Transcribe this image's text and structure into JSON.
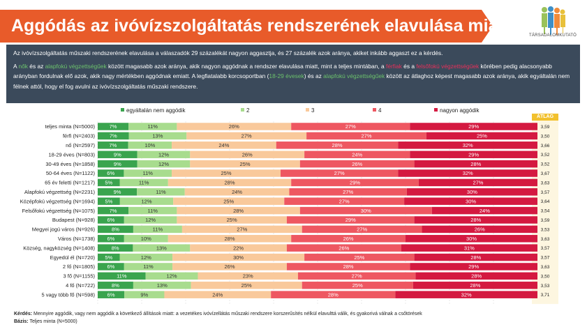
{
  "title": "Aggódás az ivóvízszolgáltatás rendszerének elavulása miatt",
  "logo_text": "TÁRSADALOMKUTATÓ",
  "info": {
    "p1": "Az ivóvízszolgáltatás műszaki rendszerének elavulása a válaszadók 29 százalékát nagyon aggasztja, és 27 százalék azok aránya, akiket inkább aggaszt ez a kérdés.",
    "p2": [
      {
        "t": "A ",
        "c": ""
      },
      {
        "t": "nők",
        "c": "green"
      },
      {
        "t": " és az ",
        "c": ""
      },
      {
        "t": "alapfokú végzettségűek",
        "c": "green"
      },
      {
        "t": " között magasabb azok aránya, akik nagyon aggódnak a rendszer elavulása miatt, mint a teljes mintában, a ",
        "c": ""
      },
      {
        "t": "férfiak",
        "c": "red"
      },
      {
        "t": " és a ",
        "c": ""
      },
      {
        "t": "felsőfokú végzettségűek",
        "c": "red"
      },
      {
        "t": " körében pedig alacsonyabb arányban fordulnak elő azok, akik nagy mértékben aggódnak emiatt. A legfiatalabb korcsoportban (",
        "c": ""
      },
      {
        "t": "18-29 évesek",
        "c": "green"
      },
      {
        "t": ") és az ",
        "c": ""
      },
      {
        "t": "alapfokú végzettségűek",
        "c": "green"
      },
      {
        "t": " között az átlaghoz képest magasabb azok aránya, akik egyáltalán nem félnek attól, hogy el fog avulni az ivóvízszolgáltatás műszaki rendszere.",
        "c": ""
      }
    ]
  },
  "atlag_label": "ÁTLAG",
  "colors": {
    "banner": "#e85b2a",
    "infobox": "#3b4a5b",
    "highlight_green": "#6cc26c",
    "highlight_red": "#e8305a",
    "seg1": "#3aa44e",
    "seg2": "#a8dc8e",
    "seg3": "#f9c99b",
    "seg4": "#ee5761",
    "seg5": "#d41940",
    "atlag": "#f2c12e"
  },
  "chart_data": {
    "type": "bar",
    "orientation": "horizontal",
    "stacked": true,
    "x_ticks": [
      "0%",
      "10%",
      "20%",
      "30%",
      "40%",
      "50%",
      "60%",
      "70%",
      "80%",
      "90%",
      "100%"
    ],
    "xlim": [
      0,
      100
    ],
    "legend_position": "top",
    "series": [
      {
        "name": "egyáltalán nem aggódik",
        "color": "#3aa44e"
      },
      {
        "name": "2",
        "color": "#a8dc8e"
      },
      {
        "name": "3",
        "color": "#f9c99b"
      },
      {
        "name": "4",
        "color": "#ee5761"
      },
      {
        "name": "nagyon aggódik",
        "color": "#d41940"
      }
    ],
    "rows": [
      {
        "label": "teljes minta (N=5000)",
        "values": [
          7,
          11,
          26,
          27,
          29
        ],
        "avg": "3,59"
      },
      {
        "label": "férfi (N=2403)",
        "values": [
          7,
          13,
          27,
          27,
          25
        ],
        "avg": "3,50"
      },
      {
        "label": "nő (N=2597)",
        "values": [
          7,
          10,
          24,
          28,
          32
        ],
        "avg": "3,66"
      },
      {
        "label": "18-29 éves (N=803)",
        "values": [
          9,
          12,
          26,
          24,
          29
        ],
        "avg": "3,52"
      },
      {
        "label": "30-49 éves (N=1858)",
        "values": [
          9,
          12,
          25,
          26,
          28
        ],
        "avg": "3,52"
      },
      {
        "label": "50-64 éves (N=1122)",
        "values": [
          6,
          11,
          25,
          27,
          32
        ],
        "avg": "3,67"
      },
      {
        "label": "65 év feletti (N=1217)",
        "values": [
          5,
          11,
          28,
          29,
          27
        ],
        "avg": "3,63"
      },
      {
        "label": "Alapfokú végzettség (N=2231)",
        "values": [
          9,
          11,
          24,
          27,
          30
        ],
        "avg": "3,57"
      },
      {
        "label": "Középfokú végzettség (N=1694)",
        "values": [
          5,
          12,
          25,
          27,
          30
        ],
        "avg": "3,64"
      },
      {
        "label": "Felsőfokú végzettség (N=1075)",
        "values": [
          7,
          11,
          28,
          30,
          24
        ],
        "avg": "3,54"
      },
      {
        "label": "Budapest (N=928)",
        "values": [
          6,
          12,
          25,
          29,
          28
        ],
        "avg": "3,59"
      },
      {
        "label": "Megyei jogú város (N=926)",
        "values": [
          8,
          11,
          27,
          27,
          26
        ],
        "avg": "3,53"
      },
      {
        "label": "Város (N=1738)",
        "values": [
          6,
          10,
          28,
          26,
          30
        ],
        "avg": "3,63"
      },
      {
        "label": "Község, nagyközség (N=1408)",
        "values": [
          8,
          13,
          22,
          26,
          31
        ],
        "avg": "3,57"
      },
      {
        "label": "Egyedül él (N=720)",
        "values": [
          5,
          12,
          30,
          25,
          28
        ],
        "avg": "3,57"
      },
      {
        "label": "2 fő (N=1805)",
        "values": [
          6,
          11,
          26,
          28,
          29
        ],
        "avg": "3,63"
      },
      {
        "label": "3 fő (N=1155)",
        "values": [
          11,
          12,
          23,
          27,
          28
        ],
        "avg": "3,50"
      },
      {
        "label": "4 fő (N=722)",
        "values": [
          8,
          13,
          25,
          25,
          28
        ],
        "avg": "3,53"
      },
      {
        "label": "5 vagy több fő (N=598)",
        "values": [
          6,
          9,
          24,
          28,
          32
        ],
        "avg": "3,71"
      }
    ]
  },
  "footnote": {
    "kerdes_label": "Kérdés:",
    "kerdes_text": " Mennyire aggódik, vagy nem aggódik a következő állítások miatt: a vezetékes ivóvízellátás műszaki rendszere korszerűsítés nélkül elavulttá válik, és gyakorivá válnak a csőtörések",
    "bazis_label": "Bázis:",
    "bazis_text": " Teljes minta (N=5000)"
  }
}
